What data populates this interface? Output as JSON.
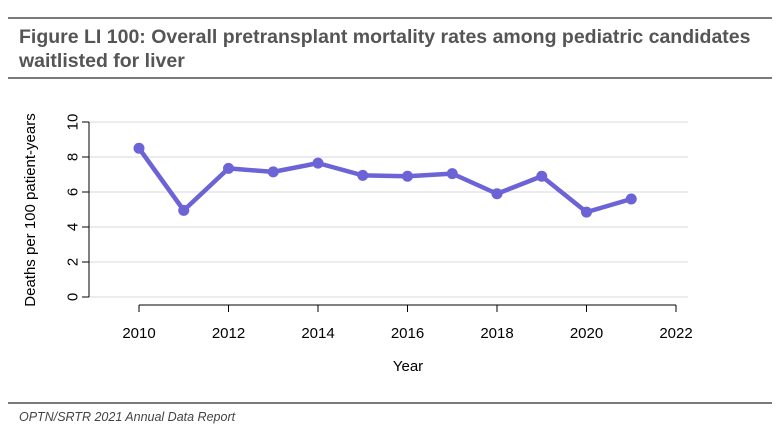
{
  "header": {
    "title": "Figure LI 100: Overall pretransplant mortality rates among pediatric candidates waitlisted for liver"
  },
  "footer": {
    "source": "OPTN/SRTR 2021 Annual Data Report"
  },
  "colors": {
    "series": "#6b63d6",
    "rule": "#7a7a7a",
    "gridline": "#d9d9d9"
  },
  "chart_data": {
    "type": "line",
    "title": "",
    "xlabel": "Year",
    "ylabel": "Deaths per 100 patient-years",
    "xlim": [
      2009.8,
      2022
    ],
    "ylim": [
      0,
      10
    ],
    "xticks": [
      2010,
      2012,
      2014,
      2016,
      2018,
      2020,
      2022
    ],
    "yticks": [
      0,
      2,
      4,
      6,
      8,
      10
    ],
    "grid": "horizontal",
    "legend": "none",
    "x": [
      2010,
      2011,
      2012,
      2013,
      2014,
      2015,
      2016,
      2017,
      2018,
      2019,
      2020,
      2021
    ],
    "series": [
      {
        "values": [
          8.5,
          4.95,
          7.35,
          7.15,
          7.65,
          6.95,
          6.9,
          7.05,
          5.9,
          6.9,
          4.85,
          5.6
        ]
      }
    ]
  }
}
